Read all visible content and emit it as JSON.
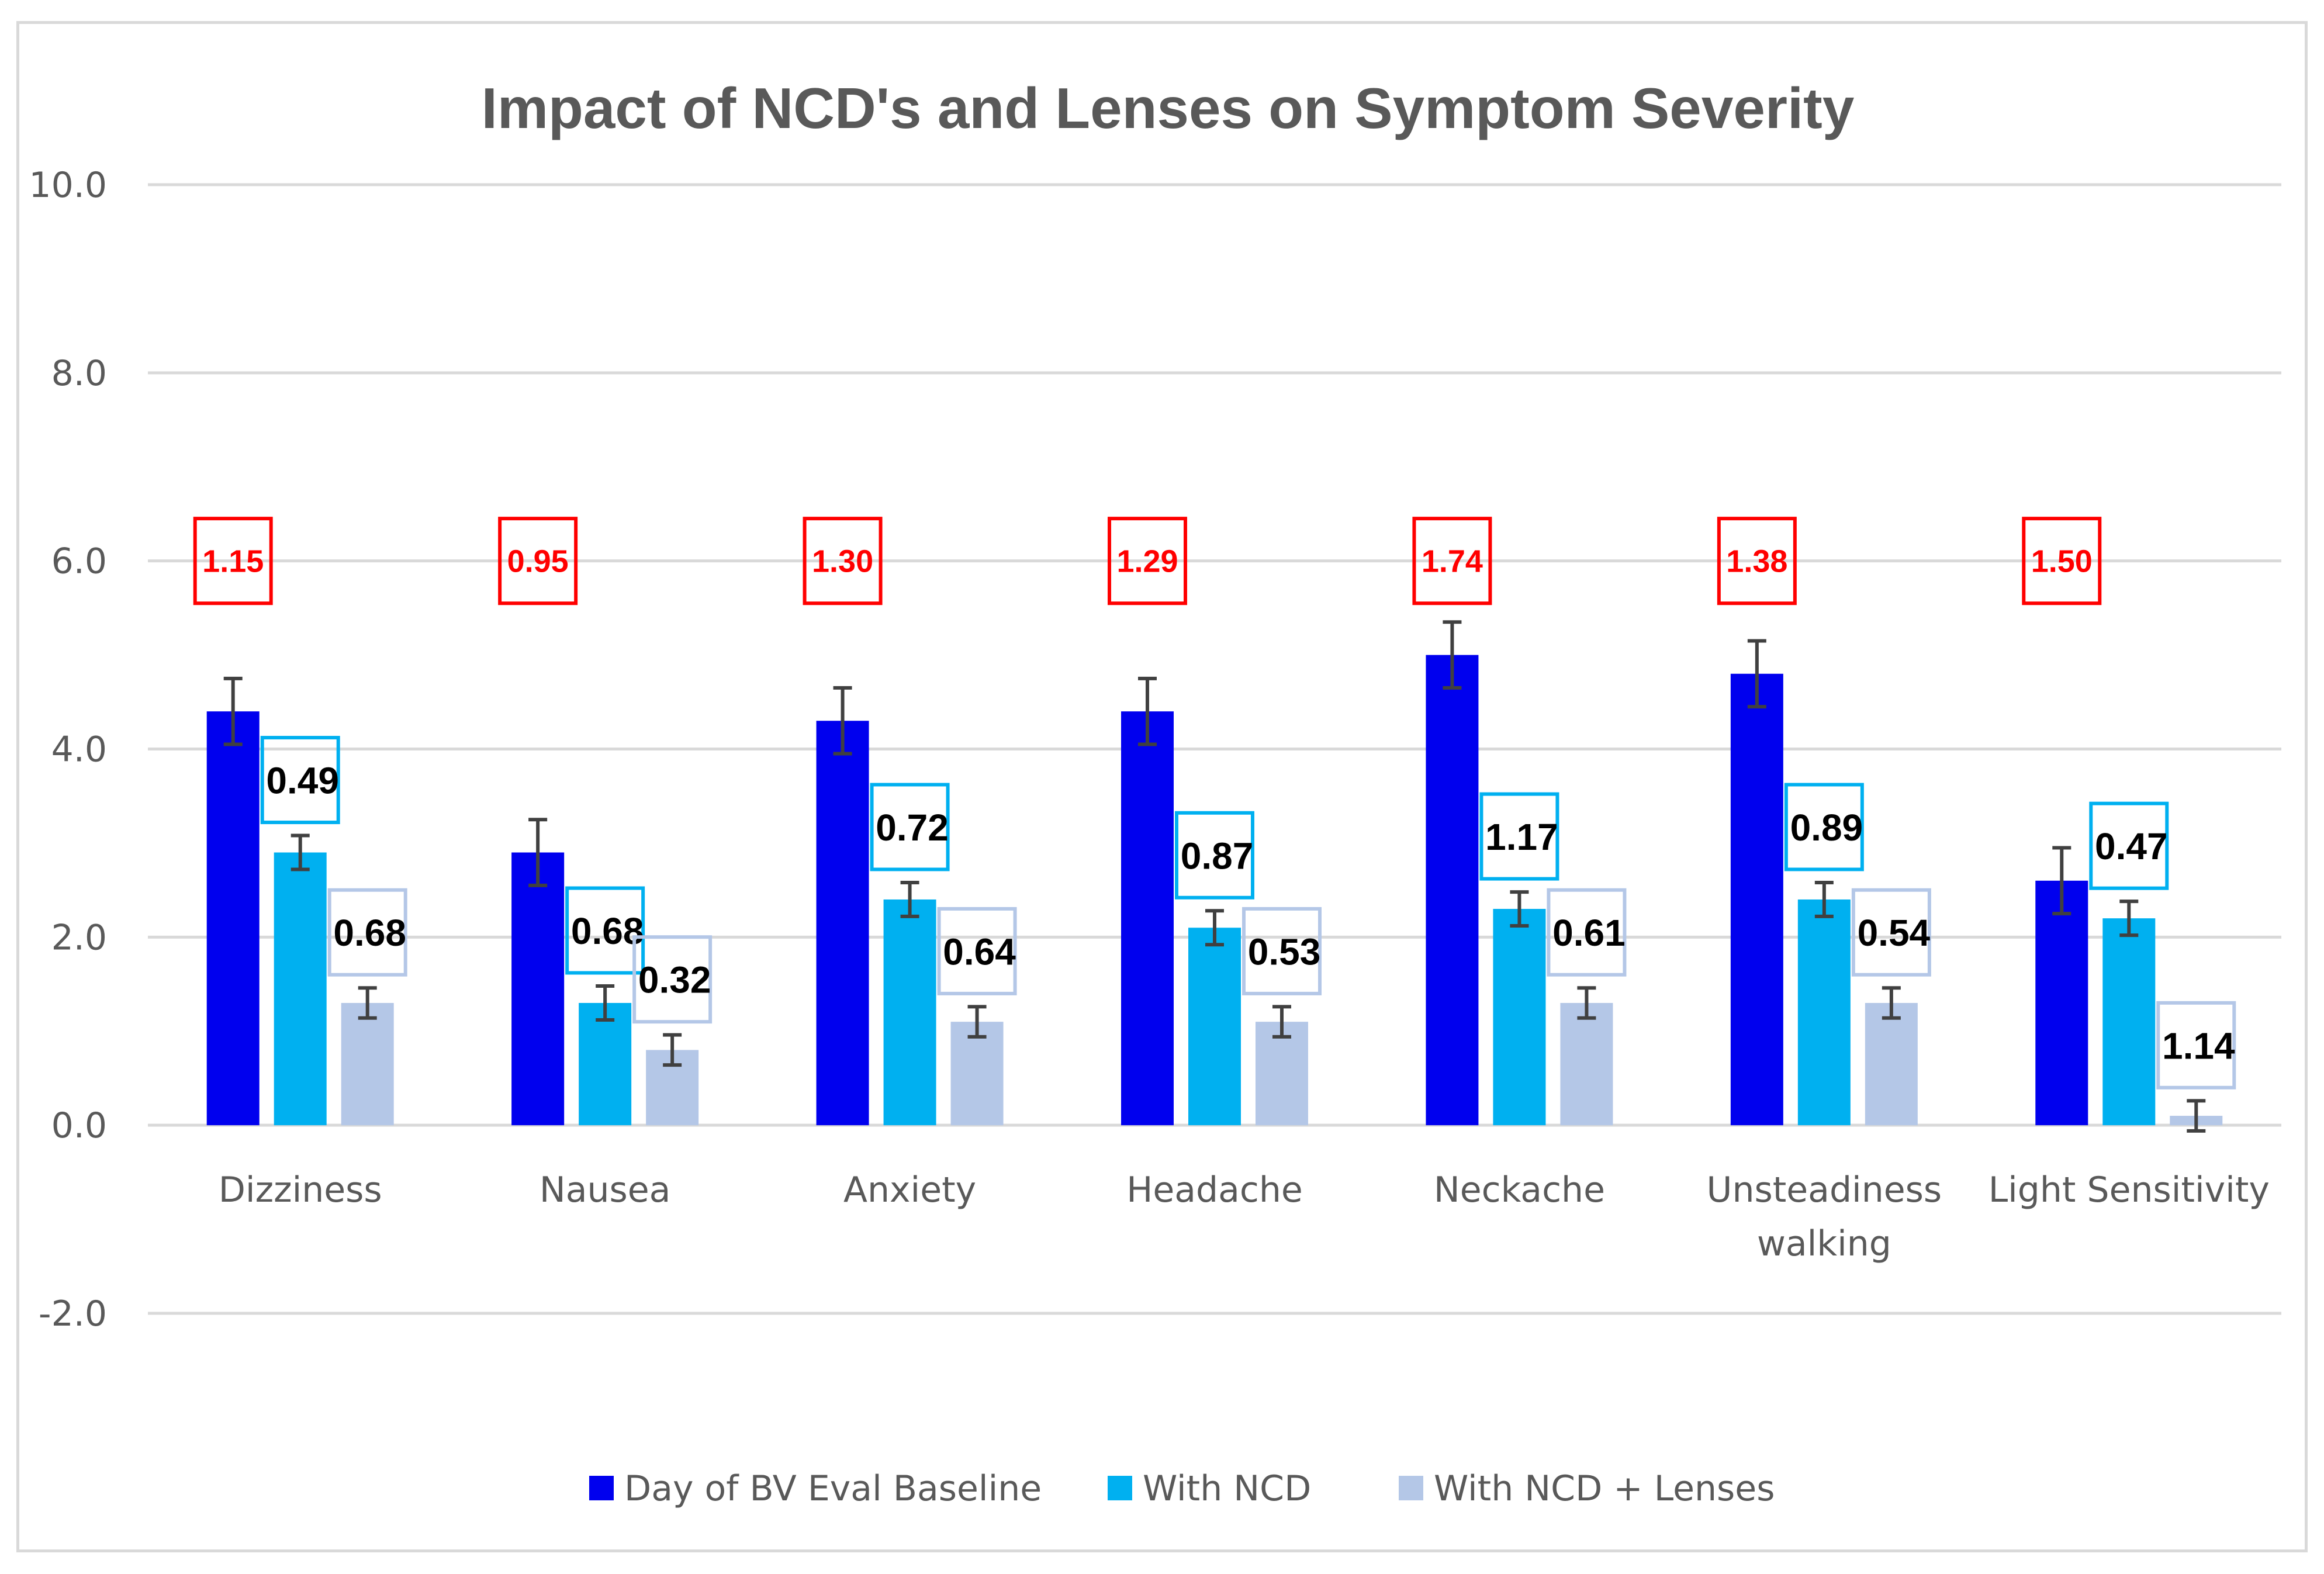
{
  "chart_data": {
    "type": "bar",
    "title": "Impact of NCD's and Lenses on Symptom Severity",
    "xlabel": "",
    "ylabel": "",
    "ylim": [
      -2.0,
      10.0
    ],
    "yticks": [
      "-2.0",
      "0.0",
      "2.0",
      "4.0",
      "6.0",
      "8.0",
      "10.0"
    ],
    "ytick_values": [
      -2,
      0,
      2,
      4,
      6,
      8,
      10
    ],
    "grid": true,
    "legend_position": "bottom",
    "categories": [
      [
        "Dizziness"
      ],
      [
        "Nausea"
      ],
      [
        "Anxiety"
      ],
      [
        "Headache"
      ],
      [
        "Neckache"
      ],
      [
        "Unsteadiness",
        "walking"
      ],
      [
        "Light Sensitivity"
      ]
    ],
    "series": [
      {
        "name": "Day of BV Eval Baseline",
        "color": "#0000ee",
        "values": [
          4.4,
          2.9,
          4.3,
          4.4,
          5.0,
          4.8,
          2.6
        ],
        "error": [
          0.35,
          0.35,
          0.35,
          0.35,
          0.35,
          0.35,
          0.35
        ]
      },
      {
        "name": "With NCD",
        "color": "#00b0f0",
        "values": [
          2.9,
          1.3,
          2.4,
          2.1,
          2.3,
          2.4,
          2.2
        ],
        "error": [
          0.18,
          0.18,
          0.18,
          0.18,
          0.18,
          0.18,
          0.18
        ]
      },
      {
        "name": "With NCD + Lenses",
        "color": "#b4c7e7",
        "values": [
          1.3,
          0.8,
          1.1,
          1.1,
          1.3,
          1.3,
          0.1
        ],
        "error": [
          0.16,
          0.16,
          0.16,
          0.16,
          0.16,
          0.16,
          0.16
        ]
      }
    ],
    "annotations": {
      "baseline_to_ncd": [
        "1.15",
        "0.95",
        "1.30",
        "1.29",
        "1.74",
        "1.38",
        "1.50"
      ],
      "ncd": [
        "0.49",
        "0.68",
        "0.72",
        "0.87",
        "1.17",
        "0.89",
        "0.47"
      ],
      "ncd_lenses": [
        "0.68",
        "0.32",
        "0.64",
        "0.53",
        "0.61",
        "0.54",
        "1.14"
      ]
    },
    "annotation_colors": {
      "baseline_to_ncd": "#ff0000",
      "ncd": "#00b0f0",
      "ncd_lenses": "#b4c7e7"
    }
  }
}
